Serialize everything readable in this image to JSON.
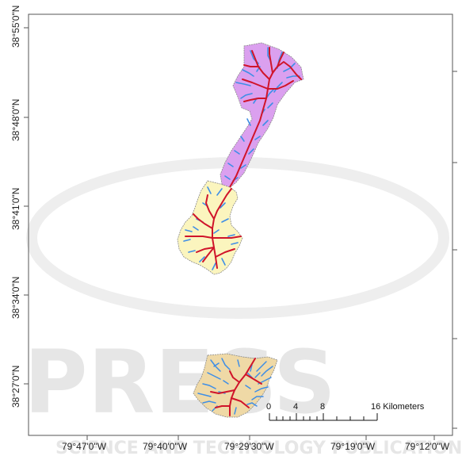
{
  "map": {
    "lat_labels": [
      "38°55'0\"N",
      "38°48'0\"N",
      "38°41'0\"N",
      "38°34'0\"N",
      "38°27'0\"N"
    ],
    "lon_labels": [
      "79°47'0\"W",
      "79°40'0\"W",
      "79°29'30\"W",
      "79°19'0\"W",
      "79°12'0\"W"
    ],
    "scale_bar": {
      "ticks": [
        "0",
        "4",
        "8",
        "16 Kilometers"
      ]
    },
    "watermark": {
      "text": "PRESS",
      "subtext": "SCIENCE AND TECHNOLOGY PUBLICATIONS"
    },
    "colors": {
      "watershed_north": "#dba0ef",
      "watershed_middle": "#fbf5be",
      "watershed_south": "#efd9a6",
      "stream_main": "#d0142a",
      "stream_tributary": "#3e8ee6",
      "frame": "#555555"
    },
    "watersheds": [
      "north-watershed",
      "middle-watershed",
      "south-watershed"
    ]
  }
}
